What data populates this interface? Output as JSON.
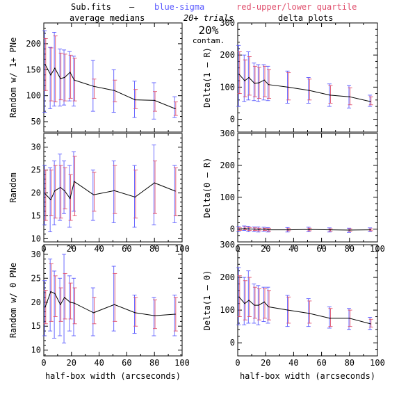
{
  "header": {
    "file_label": "Sub.fits",
    "dash": "–",
    "blue_label": "blue-sigma",
    "red_label": "red-upper/lower quartile",
    "left_title": "average medians",
    "right_title": "delta plots",
    "trials": "20+ trials",
    "percent": "20%",
    "contam": "contam."
  },
  "colors": {
    "line": "#000000",
    "sigma": "#5a5aff",
    "quartile": "#e0506e",
    "frame": "#000000"
  },
  "chart_data": [
    {
      "id": "top-left",
      "type": "line",
      "xlabel": "",
      "ylabel": "Random w/ 1+ PNe",
      "xlim": [
        0,
        100
      ],
      "ylim": [
        30,
        240
      ],
      "xticks": [],
      "yticks": [
        50,
        100,
        150,
        200
      ],
      "x": [
        1,
        5,
        8,
        12,
        15,
        19,
        22,
        36,
        51,
        66,
        80,
        95
      ],
      "y": [
        160,
        140,
        153,
        133,
        135,
        145,
        130,
        118,
        110,
        92,
        91,
        75
      ],
      "sigma_lo": [
        68,
        75,
        80,
        80,
        82,
        90,
        80,
        70,
        68,
        58,
        55,
        58
      ],
      "sigma_hi": [
        225,
        193,
        222,
        190,
        188,
        185,
        176,
        168,
        150,
        128,
        125,
        98
      ],
      "q_lo": [
        110,
        90,
        88,
        92,
        90,
        95,
        90,
        95,
        88,
        75,
        70,
        62
      ],
      "q_hi": [
        210,
        192,
        215,
        182,
        180,
        178,
        172,
        132,
        130,
        112,
        108,
        88
      ]
    },
    {
      "id": "top-right",
      "type": "line",
      "xlabel": "",
      "ylabel": "Delta(1 – R)",
      "xlim": [
        0,
        100
      ],
      "ylim": [
        -40,
        300
      ],
      "xticks": [],
      "yticks": [
        0,
        100,
        200,
        300
      ],
      "x": [
        1,
        5,
        8,
        12,
        15,
        19,
        22,
        36,
        51,
        66,
        80,
        95
      ],
      "y": [
        140,
        120,
        130,
        112,
        113,
        122,
        108,
        100,
        90,
        75,
        70,
        55
      ],
      "sigma_lo": [
        40,
        55,
        60,
        58,
        55,
        60,
        58,
        50,
        50,
        40,
        35,
        40
      ],
      "sigma_hi": [
        230,
        200,
        210,
        175,
        170,
        170,
        165,
        150,
        130,
        110,
        105,
        75
      ],
      "q_lo": [
        80,
        70,
        75,
        70,
        65,
        70,
        65,
        60,
        60,
        50,
        45,
        45
      ],
      "q_hi": [
        210,
        185,
        195,
        165,
        162,
        165,
        155,
        145,
        125,
        105,
        98,
        70
      ]
    },
    {
      "id": "middle-left",
      "type": "line",
      "xlabel": "",
      "ylabel": "Random",
      "xlim": [
        0,
        100
      ],
      "ylim": [
        9.3,
        33
      ],
      "xticks": [
        0,
        20,
        40,
        60,
        80,
        100
      ],
      "yticks": [
        10,
        15,
        20,
        25,
        30
      ],
      "x": [
        1,
        5,
        8,
        12,
        15,
        19,
        22,
        36,
        51,
        66,
        80,
        95
      ],
      "y": [
        19.8,
        18.5,
        20.5,
        21.2,
        20.5,
        18.8,
        22.5,
        19.6,
        20.5,
        19.1,
        22.2,
        20.4
      ],
      "sigma_lo": [
        13,
        11.5,
        13,
        14,
        15.5,
        12.5,
        16,
        14,
        13.5,
        12.5,
        13,
        13.5
      ],
      "sigma_hi": [
        26,
        25.5,
        27,
        28.5,
        27,
        26,
        29,
        25,
        27,
        26,
        30.5,
        26
      ],
      "q_lo": [
        14,
        15,
        14.5,
        14.5,
        16.5,
        14,
        15,
        16,
        15.5,
        14.5,
        15.5,
        15
      ],
      "q_hi": [
        25,
        25,
        26,
        26,
        25.5,
        24,
        28,
        24.5,
        26,
        25,
        27,
        25.5
      ]
    },
    {
      "id": "middle-right",
      "type": "line",
      "xlabel": "",
      "ylabel": "Delta(0 – R)",
      "xlim": [
        0,
        100
      ],
      "ylim": [
        -40,
        300
      ],
      "xticks": [
        0,
        20,
        40,
        60,
        80,
        100
      ],
      "yticks": [
        0,
        100,
        200,
        300
      ],
      "x": [
        1,
        5,
        8,
        12,
        15,
        19,
        22,
        36,
        51,
        66,
        80,
        95
      ],
      "y": [
        0,
        2,
        1,
        0,
        -1,
        0,
        -2,
        -2,
        -1,
        -2,
        -3,
        -2
      ],
      "sigma_lo": [
        -8,
        -4,
        -8,
        -8,
        -9,
        -7,
        -9,
        -9,
        -8,
        -9,
        -10,
        -8
      ],
      "sigma_hi": [
        8,
        10,
        9,
        7,
        7,
        6,
        5,
        5,
        6,
        4,
        3,
        4
      ],
      "q_lo": [
        -4,
        -2,
        -4,
        -4,
        -5,
        -4,
        -6,
        -5,
        -5,
        -6,
        -7,
        -5
      ],
      "q_hi": [
        4,
        7,
        5,
        4,
        3,
        3,
        2,
        2,
        3,
        1,
        1,
        1
      ]
    },
    {
      "id": "bottom-left",
      "type": "line",
      "xlabel": "half-box width (arcseconds)",
      "ylabel": "Random w/ 0 PNe",
      "xlim": [
        0,
        100
      ],
      "ylim": [
        8.8,
        32
      ],
      "xticks": [
        0,
        20,
        40,
        60,
        80,
        100
      ],
      "yticks": [
        10,
        15,
        20,
        25,
        30
      ],
      "x": [
        1,
        5,
        8,
        12,
        15,
        19,
        22,
        36,
        51,
        66,
        80,
        95
      ],
      "y": [
        19,
        22.2,
        21.8,
        19.5,
        21,
        20,
        19.8,
        17.8,
        19.5,
        17.8,
        17.2,
        17.5
      ],
      "sigma_lo": [
        13,
        14,
        12.5,
        13,
        11.5,
        14,
        13,
        13,
        14,
        13.5,
        13,
        13
      ],
      "sigma_hi": [
        24.5,
        29,
        26.5,
        25,
        30,
        25.5,
        25,
        23,
        27.5,
        21.5,
        21,
        21.5
      ],
      "q_lo": [
        15.5,
        16,
        17,
        16,
        16.5,
        16.5,
        15.5,
        15.5,
        16,
        15,
        14.5,
        14
      ],
      "q_hi": [
        22.5,
        28,
        25.5,
        23,
        26,
        24,
        23,
        21,
        26,
        21,
        20.5,
        21
      ]
    },
    {
      "id": "bottom-right",
      "type": "line",
      "xlabel": "half-box width (arcseconds)",
      "ylabel": "Delta(1 – 0)",
      "xlim": [
        0,
        100
      ],
      "ylim": [
        -40,
        300
      ],
      "xticks": [
        0,
        20,
        40,
        60,
        80,
        100
      ],
      "yticks": [
        0,
        100,
        200,
        300
      ],
      "x": [
        1,
        5,
        8,
        12,
        15,
        19,
        22,
        36,
        51,
        66,
        80,
        95
      ],
      "y": [
        140,
        120,
        130,
        115,
        115,
        125,
        110,
        100,
        90,
        75,
        75,
        58
      ],
      "sigma_lo": [
        55,
        55,
        60,
        60,
        55,
        65,
        60,
        50,
        50,
        45,
        40,
        40
      ],
      "sigma_hi": [
        230,
        200,
        220,
        180,
        175,
        170,
        170,
        145,
        135,
        110,
        105,
        78
      ],
      "q_lo": [
        80,
        70,
        80,
        75,
        70,
        75,
        70,
        60,
        60,
        50,
        50,
        48
      ],
      "q_hi": [
        205,
        190,
        200,
        170,
        165,
        165,
        160,
        140,
        128,
        105,
        100,
        72
      ]
    }
  ]
}
